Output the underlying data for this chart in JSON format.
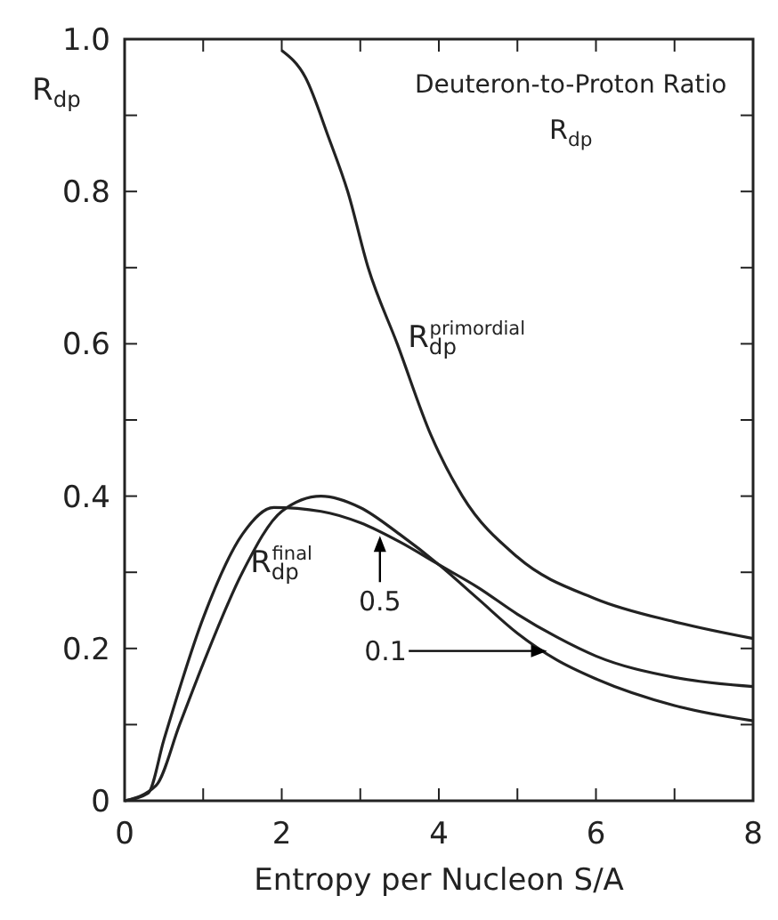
{
  "chart_data": {
    "type": "line",
    "title": "Deuteron-to-Proton Ratio",
    "subtitle": "R$_{dp}$",
    "xlabel": "Entropy per Nucleon S/A",
    "ylabel": "R$_{dp}$",
    "xlim": [
      0,
      8
    ],
    "ylim": [
      0,
      1.0
    ],
    "xticks": [
      0,
      {
        "value": 1,
        "label": null
      },
      2,
      {
        "value": 3,
        "label": null
      },
      4,
      {
        "value": 5,
        "label": null
      },
      6,
      {
        "value": 7,
        "label": null
      },
      8
    ],
    "yticks": [
      0,
      {
        "value": 0.1,
        "label": null
      },
      0.2,
      {
        "value": 0.3,
        "label": null
      },
      0.4,
      {
        "value": 0.5,
        "label": null
      },
      0.6,
      {
        "value": 0.7,
        "label": null
      },
      0.8,
      {
        "value": 0.9,
        "label": null
      },
      "1.0"
    ],
    "grid": false,
    "marker": "none",
    "line_style": "solid",
    "annotations": [
      {
        "text": "R$_{dp}$$^{final}$",
        "x": 1.6,
        "y": 0.3
      }
    ],
    "series": [
      {
        "name": "R$_{dp}$$^{primordial}$",
        "color": "#222222",
        "x": [
          2.0,
          2.3,
          2.6,
          2.84,
          3.1,
          3.47,
          3.9,
          4.3,
          5,
          6,
          7,
          8
        ],
        "values": [
          0.985,
          0.95,
          0.87,
          0.8,
          0.7,
          0.6,
          0.48,
          0.4,
          0.32,
          0.265,
          0.235,
          0.213
        ]
      },
      {
        "name": "0.5",
        "color": "#222222",
        "x": [
          0,
          0.3,
          0.5,
          1,
          1.5,
          1.9,
          2.5,
          3,
          3.5,
          4,
          4.5,
          5,
          5.5,
          6,
          7,
          8
        ],
        "values": [
          0,
          0.01,
          0.08,
          0.24,
          0.35,
          0.385,
          0.38,
          0.365,
          0.34,
          0.31,
          0.28,
          0.245,
          0.215,
          0.19,
          0.162,
          0.15
        ]
      },
      {
        "name": "0.1",
        "color": "#222222",
        "x": [
          0,
          0.4,
          0.7,
          1,
          1.5,
          2,
          2.5,
          3,
          3.5,
          4,
          4.5,
          5,
          5.5,
          6,
          7,
          8
        ],
        "values": [
          0,
          0.02,
          0.1,
          0.18,
          0.3,
          0.38,
          0.4,
          0.385,
          0.35,
          0.31,
          0.265,
          0.22,
          0.185,
          0.16,
          0.125,
          0.105
        ]
      }
    ]
  }
}
